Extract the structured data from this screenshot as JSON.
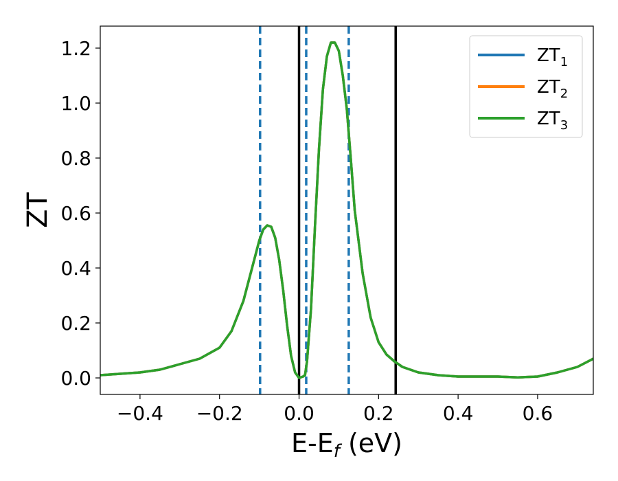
{
  "chart_data": {
    "type": "line",
    "xlabel": "E-E",
    "xlabel_sub": "f",
    "xlabel_unit": " (eV)",
    "ylabel": "ZT",
    "xlim": [
      -0.5,
      0.74
    ],
    "ylim": [
      -0.06,
      1.28
    ],
    "xticks": [
      -0.4,
      -0.2,
      0.0,
      0.2,
      0.4,
      0.6
    ],
    "xtick_labels": [
      "−0.4",
      "−0.2",
      "0.0",
      "0.2",
      "0.4",
      "0.6"
    ],
    "yticks": [
      0.0,
      0.2,
      0.4,
      0.6,
      0.8,
      1.0,
      1.2
    ],
    "ytick_labels": [
      "0.0",
      "0.2",
      "0.4",
      "0.6",
      "0.8",
      "1.0",
      "1.2"
    ],
    "grid": false,
    "legend_position": "top-right",
    "series": [
      {
        "name": "ZT",
        "name_sub": "1",
        "color": "#1f77b4",
        "x": [
          -0.5,
          -0.45,
          -0.4,
          -0.35,
          -0.3,
          -0.25,
          -0.2,
          -0.17,
          -0.14,
          -0.12,
          -0.1,
          -0.09,
          -0.08,
          -0.07,
          -0.06,
          -0.05,
          -0.04,
          -0.03,
          -0.02,
          -0.01,
          0.0,
          0.01,
          0.015,
          0.02,
          0.03,
          0.04,
          0.05,
          0.06,
          0.07,
          0.08,
          0.09,
          0.1,
          0.11,
          0.12,
          0.13,
          0.14,
          0.16,
          0.18,
          0.2,
          0.22,
          0.24,
          0.26,
          0.3,
          0.35,
          0.4,
          0.45,
          0.5,
          0.55,
          0.6,
          0.65,
          0.7,
          0.74
        ],
        "y": [
          0.01,
          0.015,
          0.02,
          0.03,
          0.05,
          0.07,
          0.11,
          0.17,
          0.28,
          0.39,
          0.5,
          0.54,
          0.555,
          0.55,
          0.51,
          0.43,
          0.32,
          0.19,
          0.08,
          0.02,
          0.0,
          0.005,
          0.01,
          0.06,
          0.25,
          0.55,
          0.83,
          1.05,
          1.17,
          1.22,
          1.22,
          1.19,
          1.1,
          0.98,
          0.8,
          0.61,
          0.38,
          0.22,
          0.13,
          0.085,
          0.06,
          0.04,
          0.02,
          0.01,
          0.005,
          0.005,
          0.005,
          0.002,
          0.005,
          0.02,
          0.04,
          0.07
        ]
      },
      {
        "name": "ZT",
        "name_sub": "2",
        "color": "#ff7f0e",
        "x": [
          -0.5,
          -0.45,
          -0.4,
          -0.35,
          -0.3,
          -0.25,
          -0.2,
          -0.17,
          -0.14,
          -0.12,
          -0.1,
          -0.09,
          -0.08,
          -0.07,
          -0.06,
          -0.05,
          -0.04,
          -0.03,
          -0.02,
          -0.01,
          0.0,
          0.01,
          0.015,
          0.02,
          0.03,
          0.04,
          0.05,
          0.06,
          0.07,
          0.08,
          0.09,
          0.1,
          0.11,
          0.12,
          0.13,
          0.14,
          0.16,
          0.18,
          0.2,
          0.22,
          0.24,
          0.26,
          0.3,
          0.35,
          0.4,
          0.45,
          0.5,
          0.55,
          0.6,
          0.65,
          0.7,
          0.74
        ],
        "y": [
          0.01,
          0.015,
          0.02,
          0.03,
          0.05,
          0.07,
          0.11,
          0.17,
          0.28,
          0.39,
          0.5,
          0.54,
          0.555,
          0.55,
          0.51,
          0.43,
          0.32,
          0.19,
          0.08,
          0.02,
          0.0,
          0.005,
          0.01,
          0.06,
          0.25,
          0.55,
          0.83,
          1.05,
          1.17,
          1.22,
          1.22,
          1.19,
          1.1,
          0.98,
          0.8,
          0.61,
          0.38,
          0.22,
          0.13,
          0.085,
          0.06,
          0.04,
          0.02,
          0.01,
          0.005,
          0.005,
          0.005,
          0.002,
          0.005,
          0.02,
          0.04,
          0.07
        ]
      },
      {
        "name": "ZT",
        "name_sub": "3",
        "color": "#2ca02c",
        "x": [
          -0.5,
          -0.45,
          -0.4,
          -0.35,
          -0.3,
          -0.25,
          -0.2,
          -0.17,
          -0.14,
          -0.12,
          -0.1,
          -0.09,
          -0.08,
          -0.07,
          -0.06,
          -0.05,
          -0.04,
          -0.03,
          -0.02,
          -0.01,
          0.0,
          0.01,
          0.015,
          0.02,
          0.03,
          0.04,
          0.05,
          0.06,
          0.07,
          0.08,
          0.09,
          0.1,
          0.11,
          0.12,
          0.13,
          0.14,
          0.16,
          0.18,
          0.2,
          0.22,
          0.24,
          0.26,
          0.3,
          0.35,
          0.4,
          0.45,
          0.5,
          0.55,
          0.6,
          0.65,
          0.7,
          0.74
        ],
        "y": [
          0.01,
          0.015,
          0.02,
          0.03,
          0.05,
          0.07,
          0.11,
          0.17,
          0.28,
          0.39,
          0.5,
          0.54,
          0.555,
          0.55,
          0.51,
          0.43,
          0.32,
          0.19,
          0.08,
          0.02,
          0.0,
          0.005,
          0.01,
          0.06,
          0.25,
          0.55,
          0.83,
          1.05,
          1.17,
          1.22,
          1.22,
          1.19,
          1.1,
          0.98,
          0.8,
          0.61,
          0.38,
          0.22,
          0.13,
          0.085,
          0.06,
          0.04,
          0.02,
          0.01,
          0.005,
          0.005,
          0.005,
          0.002,
          0.005,
          0.02,
          0.04,
          0.07
        ]
      }
    ],
    "vlines": [
      {
        "x": -0.098,
        "style": "dashed",
        "color": "#1f77b4"
      },
      {
        "x": 0.0,
        "style": "solid",
        "color": "#000000"
      },
      {
        "x": 0.018,
        "style": "dashed",
        "color": "#1f77b4"
      },
      {
        "x": 0.125,
        "style": "dashed",
        "color": "#1f77b4"
      },
      {
        "x": 0.243,
        "style": "solid",
        "color": "#000000"
      }
    ]
  }
}
